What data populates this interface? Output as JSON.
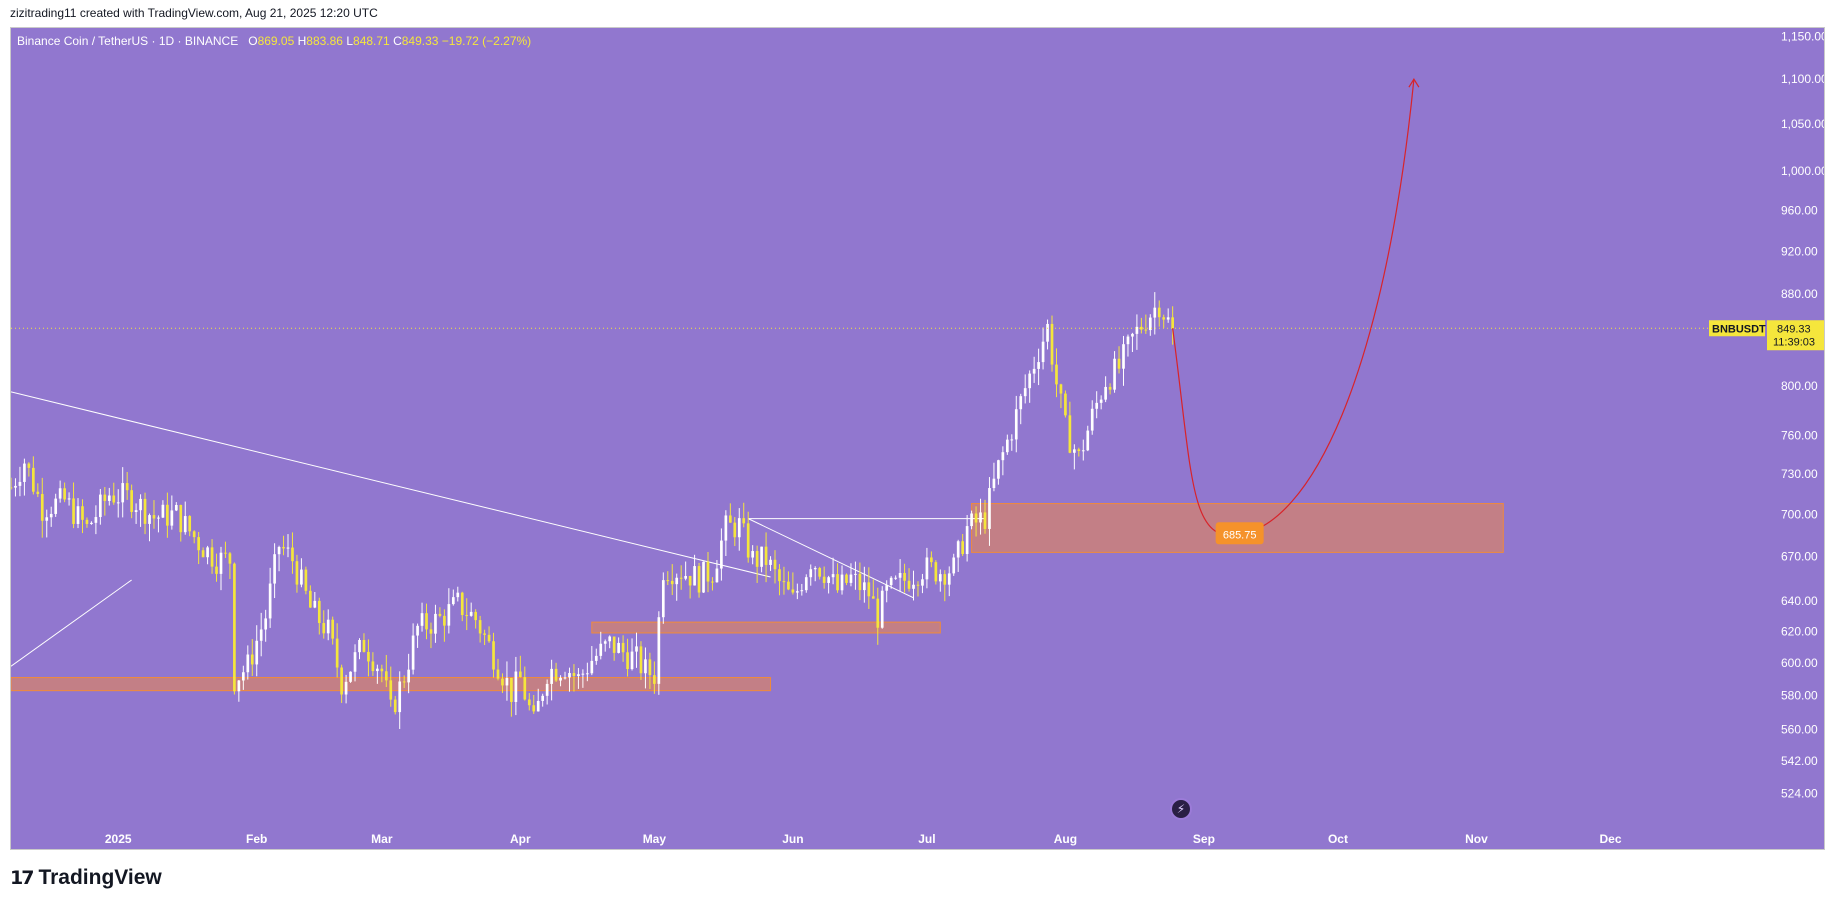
{
  "header": {
    "attribution": "zizitrading11 created with TradingView.com, Aug 21, 2025 12:20 UTC"
  },
  "legend": {
    "symbol": "Binance Coin / TetherUS · 1D · BINANCE",
    "o_label": "O",
    "o_value": "869.05",
    "h_label": "H",
    "h_value": "883.86",
    "l_label": "L",
    "l_value": "848.71",
    "c_label": "C",
    "c_value": "849.33",
    "change": "−19.72 (−2.27%)"
  },
  "price_tag": {
    "ticker": "BNBUSDT",
    "price": "849.33",
    "countdown": "11:39:03"
  },
  "projection_label": "685.75",
  "brand": {
    "name": "TradingView",
    "icon": "tradingview-logo-icon"
  },
  "colors": {
    "background": "#9177cf",
    "candle": "#f5e63c",
    "candle_alt": "#ffffff",
    "zone_fill": "#d4826e",
    "zone_border": "#f08a3c",
    "projection": "#d8232a",
    "trendline": "#ffffff"
  },
  "chart_data": {
    "type": "candlestick",
    "title": "Binance Coin / TetherUS · 1D · BINANCE",
    "y_scale": "log",
    "ylim": [
      505,
      1160
    ],
    "y_ticks": [
      1150,
      1100,
      1050,
      1000,
      960,
      920,
      880,
      800,
      760,
      730,
      700,
      670,
      640,
      620,
      600,
      580,
      560,
      542,
      524
    ],
    "y_tick_labels": [
      "1,150.00",
      "1,100.00",
      "1,050.00",
      "1,000.00",
      "960.00",
      "920.00",
      "880.00",
      "800.00",
      "760.00",
      "730.00",
      "700.00",
      "670.00",
      "640.00",
      "620.00",
      "600.00",
      "580.00",
      "560.00",
      "542.00",
      "524.00"
    ],
    "x_tick_labels": [
      "2025",
      "Feb",
      "Mar",
      "Apr",
      "May",
      "Jun",
      "Jul",
      "Aug",
      "Sep",
      "Oct",
      "Nov",
      "Dec"
    ],
    "x_tick_days": [
      0,
      31,
      59,
      90,
      120,
      151,
      181,
      212,
      243,
      273,
      304,
      334
    ],
    "x_range_days": [
      -24,
      365
    ],
    "path_anchors": [
      [
        -24,
        720
      ],
      [
        -21,
        740
      ],
      [
        -17,
        705
      ],
      [
        -12,
        710
      ],
      [
        -7,
        690
      ],
      [
        -2,
        715
      ],
      [
        3,
        712
      ],
      [
        8,
        698
      ],
      [
        13,
        700
      ],
      [
        18,
        680
      ],
      [
        22,
        668
      ],
      [
        25,
        668
      ],
      [
        26,
        590
      ],
      [
        29,
        598
      ],
      [
        33,
        630
      ],
      [
        36,
        678
      ],
      [
        39,
        668
      ],
      [
        43,
        635
      ],
      [
        47,
        620
      ],
      [
        50,
        588
      ],
      [
        55,
        612
      ],
      [
        59,
        595
      ],
      [
        61,
        570
      ],
      [
        64,
        592
      ],
      [
        67,
        622
      ],
      [
        72,
        628
      ],
      [
        76,
        638
      ],
      [
        80,
        628
      ],
      [
        84,
        605
      ],
      [
        88,
        582
      ],
      [
        90,
        590
      ],
      [
        93,
        563
      ],
      [
        96,
        595
      ],
      [
        100,
        598
      ],
      [
        103,
        590
      ],
      [
        106,
        602
      ],
      [
        110,
        612
      ],
      [
        114,
        605
      ],
      [
        116,
        602
      ],
      [
        118,
        595
      ],
      [
        120,
        593
      ],
      [
        122,
        662
      ],
      [
        126,
        660
      ],
      [
        130,
        655
      ],
      [
        133,
        660
      ],
      [
        136,
        690
      ],
      [
        139,
        692
      ],
      [
        142,
        668
      ],
      [
        145,
        668
      ],
      [
        148,
        652
      ],
      [
        151,
        640
      ],
      [
        155,
        668
      ],
      [
        158,
        660
      ],
      [
        161,
        647
      ],
      [
        164,
        655
      ],
      [
        168,
        645
      ],
      [
        170,
        630
      ],
      [
        172,
        645
      ],
      [
        175,
        652
      ],
      [
        178,
        658
      ],
      [
        180,
        662
      ],
      [
        184,
        660
      ],
      [
        187,
        662
      ],
      [
        190,
        690
      ],
      [
        194,
        698
      ],
      [
        197,
        735
      ],
      [
        200,
        765
      ],
      [
        203,
        798
      ],
      [
        206,
        830
      ],
      [
        208,
        850
      ],
      [
        210,
        802
      ],
      [
        212,
        765
      ],
      [
        215,
        742
      ],
      [
        218,
        775
      ],
      [
        221,
        805
      ],
      [
        224,
        815
      ],
      [
        227,
        840
      ],
      [
        230,
        858
      ],
      [
        233,
        872
      ],
      [
        235,
        855
      ],
      [
        236,
        849.33
      ]
    ],
    "zones": [
      {
        "label": "support-zone-low",
        "x0": -24,
        "x1": 146,
        "y0": 583,
        "y1": 591
      },
      {
        "label": "support-zone-mid",
        "x0": 106,
        "x1": 184,
        "y0": 619,
        "y1": 626
      },
      {
        "label": "demand-zone",
        "x0": 191,
        "x1": 310,
        "y0": 673,
        "y1": 708
      }
    ],
    "trendlines": [
      {
        "label": "descending-trendline",
        "x0": -24,
        "y0": 795,
        "x1": 146,
        "y1": 656
      },
      {
        "label": "rising-trendline",
        "x0": -24,
        "y0": 598,
        "x1": 3,
        "y1": 654
      },
      {
        "label": "triangle-top",
        "x0": 141,
        "y0": 697,
        "x1": 194,
        "y1": 697
      },
      {
        "label": "triangle-bottom",
        "x0": 141,
        "y0": 697,
        "x1": 178,
        "y1": 642
      }
    ],
    "projection_curve": {
      "start": [
        236,
        849.33
      ],
      "bottom": [
        251,
        685.75
      ],
      "end": [
        290,
        1100
      ],
      "marker_day": 247
    }
  }
}
